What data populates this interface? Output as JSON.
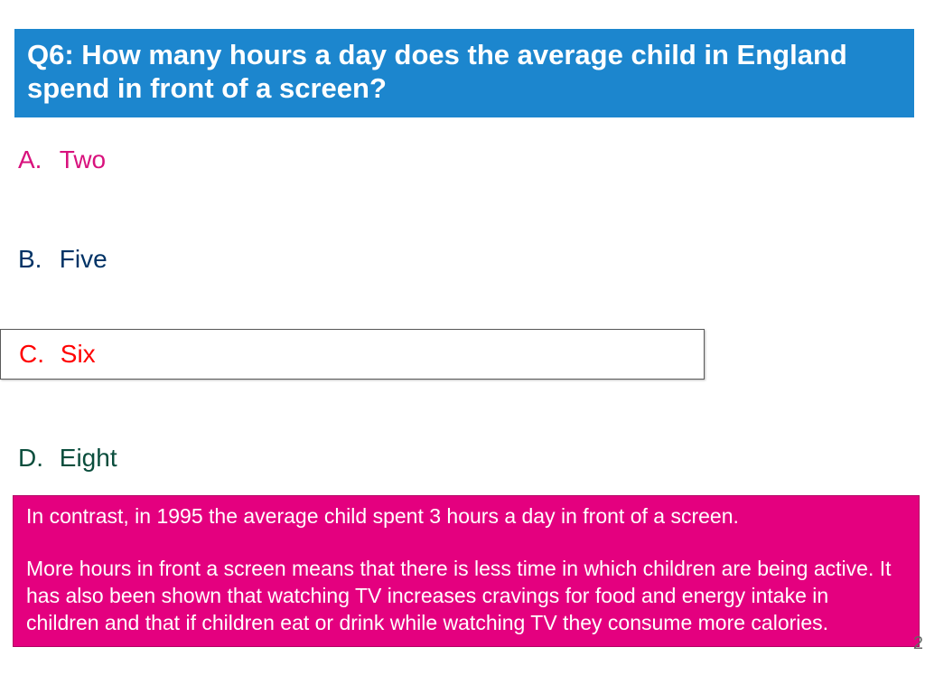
{
  "colors": {
    "question_bg": "#1c86ce",
    "question_text": "#ffffff",
    "option_a": "#d8127d",
    "option_b": "#003366",
    "option_c": "#ff0000",
    "option_d": "#0a4d3c",
    "info_bg": "#e4007f",
    "info_border": "#b20063",
    "info_text": "#ffffff"
  },
  "question": {
    "text": "Q6: How many hours a day does the average child in England spend in front of a screen?"
  },
  "options": {
    "a": {
      "letter": "A.",
      "label": "Two"
    },
    "b": {
      "letter": "B.",
      "label": "Five"
    },
    "c": {
      "letter": "C.",
      "label": "Six"
    },
    "d": {
      "letter": "D.",
      "label": "Eight"
    }
  },
  "info": {
    "para1": "In contrast, in 1995 the average child spent 3 hours a day in front of a screen.",
    "para2": "More hours in front a screen means that there is less time in which children are being active.  It has also been shown that watching TV increases cravings for food and energy intake in children and that if children eat or drink while watching TV they consume more calories."
  },
  "page_number": "2"
}
